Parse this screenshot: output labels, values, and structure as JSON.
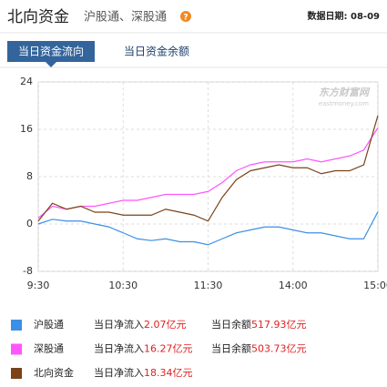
{
  "header": {
    "title": "北向资金",
    "subtitle": "沪股通、深股通",
    "help": "?",
    "date": "数据日期: 08-09"
  },
  "tabs": [
    {
      "label": "当日资金流向",
      "selected": true
    },
    {
      "label": "当日资金余额",
      "selected": false
    }
  ],
  "watermark": {
    "name": "东方财富网",
    "site": "eastmoney.com"
  },
  "chart_data": {
    "type": "line",
    "x": [
      0,
      10,
      20,
      30,
      40,
      50,
      60,
      70,
      80,
      90,
      100,
      110,
      120,
      130,
      140,
      150,
      160,
      170,
      180,
      190,
      200,
      210,
      220,
      230,
      240
    ],
    "xlim": [
      0,
      240
    ],
    "xticks": [
      {
        "value": 0,
        "label": "9:30"
      },
      {
        "value": 60,
        "label": "10:30"
      },
      {
        "value": 120,
        "label": "11:30"
      },
      {
        "value": 180,
        "label": "14:00"
      },
      {
        "value": 240,
        "label": "15:00"
      }
    ],
    "ylim": [
      -8,
      24
    ],
    "yticks": [
      -8,
      0,
      8,
      16,
      24
    ],
    "grid": true,
    "series": [
      {
        "name": "沪股通",
        "color": "#3d8fe6",
        "values": [
          0,
          0.8,
          0.5,
          0.5,
          0,
          -0.5,
          -1.5,
          -2.5,
          -2.8,
          -2.5,
          -3,
          -3,
          -3.5,
          -2.5,
          -1.5,
          -1,
          -0.5,
          -0.5,
          -1,
          -1.5,
          -1.5,
          -2,
          -2.5,
          -2.5,
          2.07
        ]
      },
      {
        "name": "深股通",
        "color": "#ff55ff",
        "values": [
          1,
          3,
          2.5,
          3,
          3,
          3.5,
          4,
          4,
          4.5,
          5,
          5,
          5,
          5.5,
          7,
          9,
          10,
          10.5,
          10.5,
          10.5,
          11,
          10.5,
          11,
          11.5,
          12.5,
          16.27
        ]
      },
      {
        "name": "北向资金",
        "color": "#7a4318",
        "values": [
          0.5,
          3.5,
          2.5,
          3,
          2,
          2,
          1.5,
          1.5,
          1.5,
          2.5,
          2,
          1.5,
          0.5,
          4.5,
          7.5,
          9,
          9.5,
          10,
          9.5,
          9.5,
          8.5,
          9,
          9,
          10,
          18.34
        ]
      }
    ]
  },
  "legend": [
    {
      "inflow_label": "当日净流入",
      "inflow": "2.07亿元",
      "balance_label": "当日余额",
      "balance": "517.93亿元"
    },
    {
      "inflow_label": "当日净流入",
      "inflow": "16.27亿元",
      "balance_label": "当日余额",
      "balance": "503.73亿元"
    },
    {
      "inflow_label": "当日净流入",
      "inflow": "18.34亿元"
    }
  ]
}
